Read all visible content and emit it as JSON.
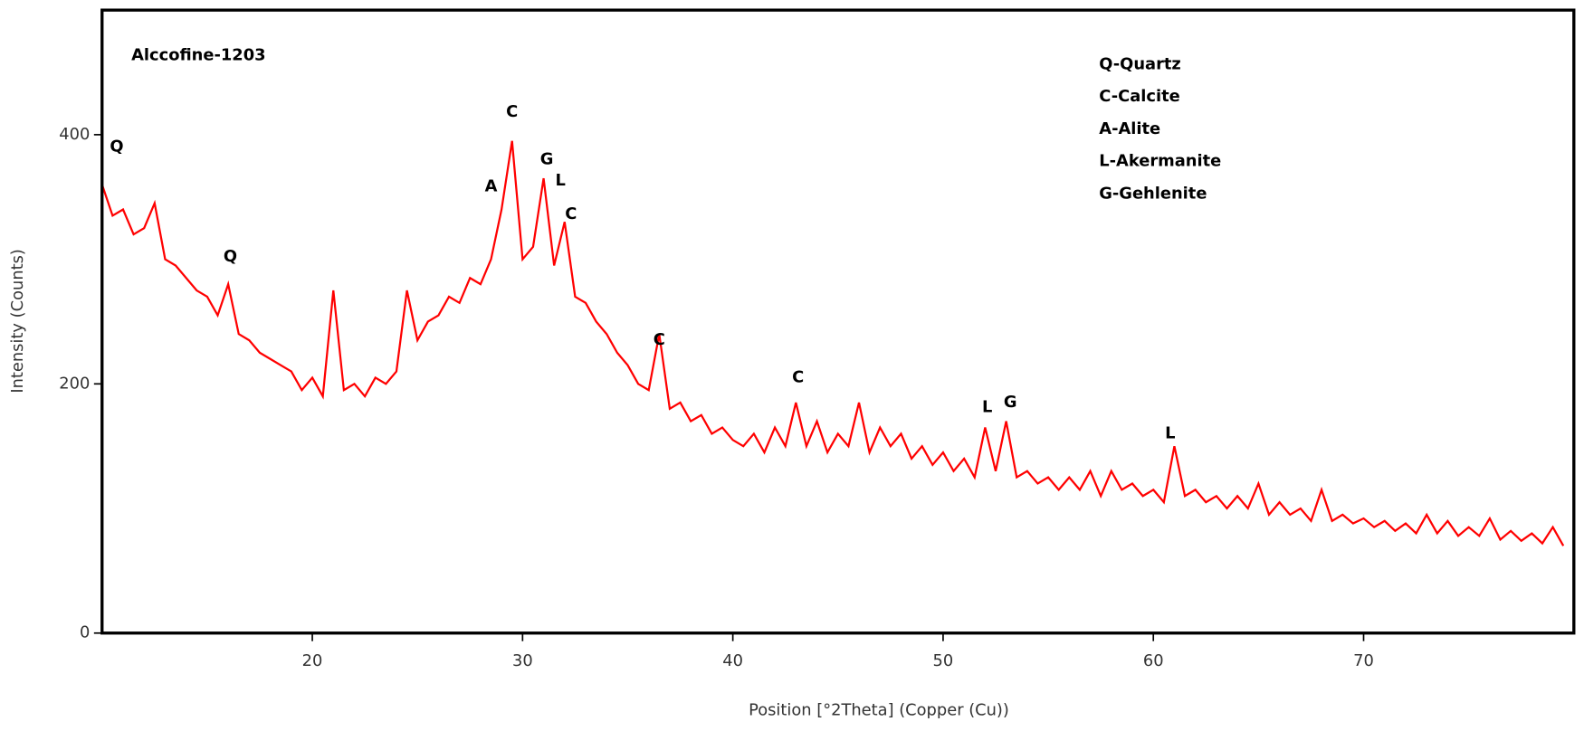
{
  "chart_data": {
    "type": "line",
    "title": "Alccofine-1203",
    "x_label": "Position [°2Theta] (Copper (Cu))",
    "y_label": "Intensity (Counts)",
    "xlim": [
      10,
      80
    ],
    "ylim": [
      0,
      500
    ],
    "xticks": [
      20,
      30,
      40,
      50,
      60,
      70
    ],
    "yticks": [
      0,
      200,
      400
    ],
    "legend_text": [
      "Q-Quartz",
      "C-Calcite",
      "A-Alite",
      "L-Akermanite",
      "G-Gehlenite"
    ],
    "annotations": [
      {
        "text": "Q",
        "x": 10.7,
        "y": 390
      },
      {
        "text": "Q",
        "x": 16.1,
        "y": 302
      },
      {
        "text": "C",
        "x": 29.5,
        "y": 418
      },
      {
        "text": "A",
        "x": 28.5,
        "y": 358
      },
      {
        "text": "G",
        "x": 31.15,
        "y": 380
      },
      {
        "text": "L",
        "x": 31.8,
        "y": 363
      },
      {
        "text": "C",
        "x": 32.3,
        "y": 336
      },
      {
        "text": "C",
        "x": 36.5,
        "y": 235
      },
      {
        "text": "C",
        "x": 43.1,
        "y": 205
      },
      {
        "text": "L",
        "x": 52.1,
        "y": 181
      },
      {
        "text": "G",
        "x": 53.2,
        "y": 185
      },
      {
        "text": "L",
        "x": 60.8,
        "y": 160
      }
    ],
    "series": [
      {
        "name": "Alccofine-1203",
        "color": "#ff0000",
        "x": [
          10,
          10.5,
          11,
          11.5,
          12,
          12.5,
          13,
          13.5,
          14,
          14.5,
          15,
          15.5,
          16,
          16.5,
          17,
          17.5,
          18,
          18.5,
          19,
          19.5,
          20,
          20.5,
          21,
          21.5,
          22,
          22.5,
          23,
          23.5,
          24,
          24.5,
          25,
          25.5,
          26,
          26.5,
          27,
          27.5,
          28,
          28.5,
          29,
          29.5,
          30,
          30.5,
          31,
          31.5,
          32,
          32.5,
          33,
          33.5,
          34,
          34.5,
          35,
          35.5,
          36,
          36.5,
          37,
          37.5,
          38,
          38.5,
          39,
          39.5,
          40,
          40.5,
          41,
          41.5,
          42,
          42.5,
          43,
          43.5,
          44,
          44.5,
          45,
          45.5,
          46,
          46.5,
          47,
          47.5,
          48,
          48.5,
          49,
          49.5,
          50,
          50.5,
          51,
          51.5,
          52,
          52.5,
          53,
          53.5,
          54,
          54.5,
          55,
          55.5,
          56,
          56.5,
          57,
          57.5,
          58,
          58.5,
          59,
          59.5,
          60,
          60.5,
          61,
          61.5,
          62,
          62.5,
          63,
          63.5,
          64,
          64.5,
          65,
          65.5,
          66,
          66.5,
          67,
          67.5,
          68,
          68.5,
          69,
          69.5,
          70,
          70.5,
          71,
          71.5,
          72,
          72.5,
          73,
          73.5,
          74,
          74.5,
          75,
          75.5,
          76,
          76.5,
          77,
          77.5,
          78,
          78.5,
          79,
          79.5
        ],
        "values": [
          360,
          335,
          340,
          320,
          325,
          345,
          300,
          295,
          285,
          275,
          270,
          255,
          280,
          240,
          235,
          225,
          220,
          215,
          210,
          195,
          205,
          190,
          275,
          195,
          200,
          190,
          205,
          200,
          210,
          275,
          235,
          250,
          255,
          270,
          265,
          285,
          280,
          300,
          340,
          395,
          300,
          310,
          365,
          295,
          330,
          270,
          265,
          250,
          240,
          225,
          215,
          200,
          195,
          240,
          180,
          185,
          170,
          175,
          160,
          165,
          155,
          150,
          160,
          145,
          165,
          150,
          185,
          150,
          170,
          145,
          160,
          150,
          185,
          145,
          165,
          150,
          160,
          140,
          150,
          135,
          145,
          130,
          140,
          125,
          165,
          130,
          170,
          125,
          130,
          120,
          125,
          115,
          125,
          115,
          130,
          110,
          130,
          115,
          120,
          110,
          115,
          105,
          150,
          110,
          115,
          105,
          110,
          100,
          110,
          100,
          120,
          95,
          105,
          95,
          100,
          90,
          115,
          90,
          95,
          88,
          92,
          85,
          90,
          82,
          88,
          80,
          95,
          80,
          90,
          78,
          85,
          78,
          92,
          75,
          82,
          74,
          80,
          72,
          85,
          70
        ]
      }
    ]
  }
}
